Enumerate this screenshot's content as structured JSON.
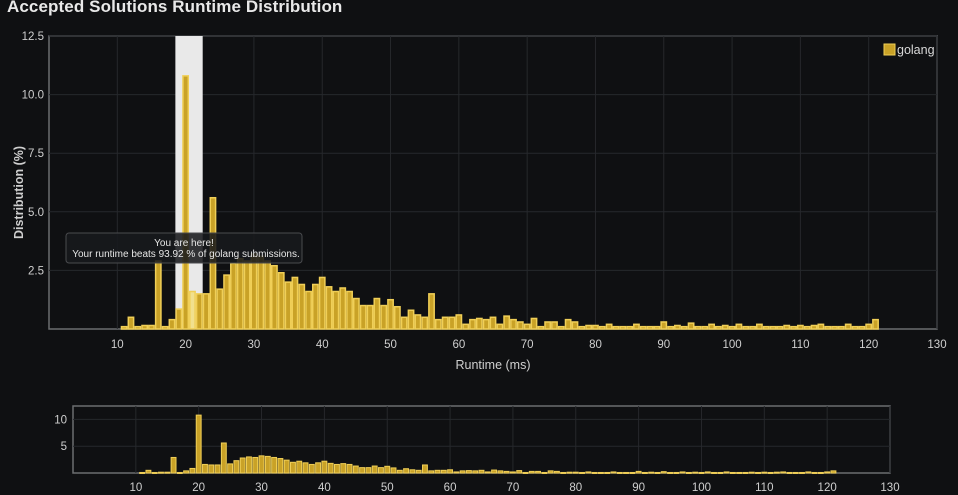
{
  "page": {
    "title": "Accepted Solutions Runtime Distribution"
  },
  "colors": {
    "background": "#0f1012",
    "bar_fill": "#c9a227",
    "bar_stroke": "#f0cf57",
    "highlight_fill": "#f1e08e",
    "highlight_band": "#e9e9e9",
    "grid": "#26282c",
    "frame": "#6b6d70"
  },
  "tooltip": {
    "line1": "You are here!",
    "line2": "Your runtime beats 93.92 % of golang submissions."
  },
  "chart_data": [
    {
      "type": "bar",
      "title": "Accepted Solutions Runtime Distribution",
      "xlabel": "Runtime (ms)",
      "ylabel": "Distribution (%)",
      "xlim": [
        0,
        130
      ],
      "ylim": [
        0,
        12.5
      ],
      "x_ticks": [
        10,
        20,
        30,
        40,
        50,
        60,
        70,
        80,
        90,
        100,
        110,
        120,
        130
      ],
      "y_ticks": [
        2.5,
        5.0,
        7.5,
        10.0,
        12.5
      ],
      "y_tick_labels": [
        "2.5",
        "5.0",
        "7.5",
        "10.0",
        "12.5"
      ],
      "grid": true,
      "legend": "top-right",
      "highlight_x": 21,
      "highlight_band": [
        18.5,
        22.5
      ],
      "series": [
        {
          "name": "golang",
          "x": [
            11,
            12,
            13,
            14,
            15,
            16,
            17,
            18,
            19,
            20,
            21,
            22,
            23,
            24,
            25,
            26,
            27,
            28,
            29,
            30,
            31,
            32,
            33,
            34,
            35,
            36,
            37,
            38,
            39,
            40,
            41,
            42,
            43,
            44,
            45,
            46,
            47,
            48,
            49,
            50,
            51,
            52,
            53,
            54,
            55,
            56,
            57,
            58,
            59,
            60,
            61,
            62,
            63,
            64,
            65,
            66,
            67,
            68,
            69,
            70,
            71,
            72,
            73,
            74,
            75,
            76,
            77,
            78,
            79,
            80,
            81,
            82,
            83,
            84,
            85,
            86,
            87,
            88,
            89,
            90,
            91,
            92,
            93,
            94,
            95,
            96,
            97,
            98,
            99,
            100,
            101,
            102,
            103,
            104,
            105,
            106,
            107,
            108,
            109,
            110,
            111,
            112,
            113,
            114,
            115,
            116,
            117,
            118,
            119,
            120,
            121
          ],
          "values": [
            0.1,
            0.5,
            0.1,
            0.15,
            0.15,
            2.9,
            0.1,
            0.4,
            0.85,
            10.8,
            1.6,
            1.5,
            1.5,
            5.6,
            1.7,
            2.3,
            2.8,
            3.0,
            2.9,
            3.2,
            3.1,
            2.9,
            2.7,
            2.4,
            2.0,
            2.2,
            1.9,
            1.6,
            1.9,
            2.2,
            1.8,
            1.6,
            1.75,
            1.6,
            1.3,
            1.0,
            1.0,
            1.3,
            1.0,
            1.25,
            0.95,
            0.5,
            0.8,
            0.6,
            0.5,
            1.5,
            0.4,
            0.5,
            0.5,
            0.6,
            0.2,
            0.4,
            0.45,
            0.4,
            0.5,
            0.2,
            0.55,
            0.4,
            0.3,
            0.2,
            0.45,
            0.1,
            0.3,
            0.3,
            0.1,
            0.4,
            0.3,
            0.1,
            0.15,
            0.15,
            0.1,
            0.2,
            0.1,
            0.1,
            0.1,
            0.2,
            0.1,
            0.1,
            0.1,
            0.3,
            0.1,
            0.15,
            0.1,
            0.25,
            0.1,
            0.1,
            0.2,
            0.1,
            0.15,
            0.1,
            0.2,
            0.1,
            0.1,
            0.2,
            0.1,
            0.1,
            0.1,
            0.15,
            0.1,
            0.15,
            0.1,
            0.15,
            0.2,
            0.1,
            0.1,
            0.1,
            0.2,
            0.1,
            0.1,
            0.2,
            0.4
          ]
        }
      ]
    },
    {
      "type": "bar",
      "xlim": [
        0,
        130
      ],
      "ylim": [
        0,
        12.5
      ],
      "x_ticks": [
        10,
        20,
        30,
        40,
        50,
        60,
        70,
        80,
        90,
        100,
        110,
        120,
        130
      ],
      "y_ticks": [
        5,
        10
      ],
      "y_tick_labels": [
        "5",
        "10"
      ],
      "grid": true,
      "series_ref": "golang"
    }
  ]
}
